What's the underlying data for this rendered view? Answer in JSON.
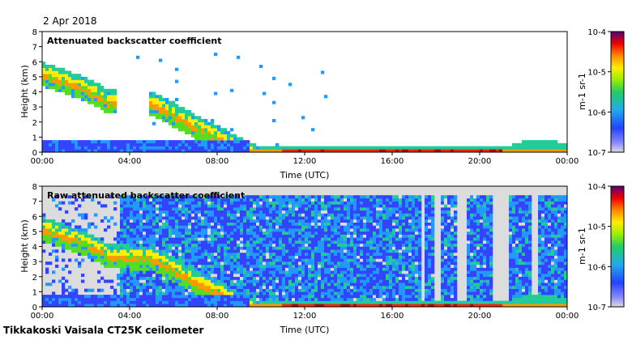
{
  "date": "2 Apr 2018",
  "footer": "Tikkakoski Vaisala CT25K ceilometer",
  "chart_data": [
    {
      "type": "heatmap",
      "title": "Attenuated backscatter coefficient",
      "xlabel": "Time (UTC)",
      "ylabel": "Height (km)",
      "x_ticks": [
        "00:00",
        "04:00",
        "08:00",
        "12:00",
        "16:00",
        "20:00",
        "00:00"
      ],
      "y_ticks": [
        "0",
        "1",
        "2",
        "3",
        "4",
        "5",
        "6",
        "7",
        "8"
      ],
      "xlim_hours": [
        0,
        24
      ],
      "ylim_km": [
        0,
        8
      ],
      "colorbar": {
        "scale": "log",
        "range": [
          1e-07,
          0.0001
        ],
        "ticks": [
          "10-7",
          "10-6",
          "10-5",
          "10-4"
        ],
        "label": "m-1 sr-1"
      },
      "features": {
        "aerosol_layer_top_km": [
          {
            "t": 0,
            "h": 6.0
          },
          {
            "t": 1,
            "h": 5.5
          },
          {
            "t": 2,
            "h": 5.0
          },
          {
            "t": 3,
            "h": 4.2
          },
          {
            "t": 5,
            "h": 4.0
          },
          {
            "t": 6,
            "h": 3.3
          },
          {
            "t": 7,
            "h": 2.5
          },
          {
            "t": 8,
            "h": 1.8
          },
          {
            "t": 9,
            "h": 1.0
          },
          {
            "t": 10,
            "h": 0.4
          },
          {
            "t": 14,
            "h": 0.35
          },
          {
            "t": 18,
            "h": 0.3
          },
          {
            "t": 21,
            "h": 0.3
          },
          {
            "t": 22.5,
            "h": 0.9
          },
          {
            "t": 24,
            "h": 0.6
          }
        ]
      }
    },
    {
      "type": "heatmap",
      "title": "Raw attenuated backscatter coefficient",
      "xlabel": "Time (UTC)",
      "ylabel": "Height (km)",
      "x_ticks": [
        "00:00",
        "04:00",
        "08:00",
        "12:00",
        "16:00",
        "20:00",
        "00:00"
      ],
      "y_ticks": [
        "0",
        "1",
        "2",
        "3",
        "4",
        "5",
        "6",
        "7",
        "8"
      ],
      "xlim_hours": [
        0,
        24
      ],
      "ylim_km": [
        0,
        8
      ],
      "colorbar": {
        "scale": "log",
        "range": [
          1e-07,
          0.0001
        ],
        "ticks": [
          "10-7",
          "10-6",
          "10-5",
          "10-4"
        ],
        "label": "m-1 sr-1"
      },
      "features": {
        "noise_gaps_hours": [
          [
            17.3,
            17.5
          ],
          [
            17.9,
            18.2
          ],
          [
            18.9,
            19.4
          ],
          [
            20.6,
            21.4
          ],
          [
            22.4,
            22.6
          ]
        ]
      }
    }
  ],
  "colormap": [
    "#dcdcdc",
    "#3344ff",
    "#2299ff",
    "#22cc99",
    "#55dd22",
    "#ffee00",
    "#ff9900",
    "#ff2200",
    "#aa0000",
    "#550077"
  ]
}
